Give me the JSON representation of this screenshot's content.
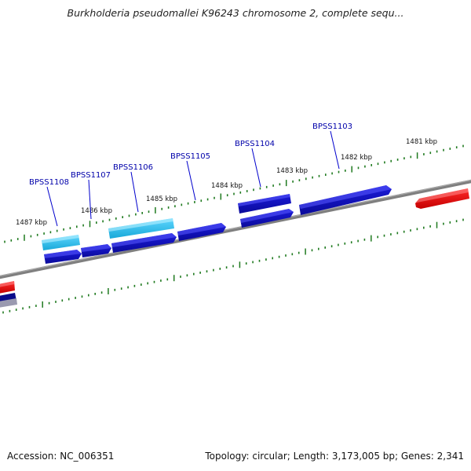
{
  "title": "Burkholderia pseudomallei K96243 chromosome 2, complete sequ...",
  "footer": {
    "accession": "Accession: NC_006351",
    "summary": "Topology: circular; Length: 3,173,005 bp; Genes: 2,341"
  },
  "colors": {
    "backbone": "#7f7f7f",
    "ticks": "#1f7a1f",
    "gene_dark": "#1a1ad8",
    "gene_light": "#1fb8e8",
    "gene_red": "#e81414",
    "label": "#0000aa"
  },
  "kbp_labels": [
    {
      "text": "1481 kbp"
    },
    {
      "text": "1482 kbp"
    },
    {
      "text": "1483 kbp"
    },
    {
      "text": "1484 kbp"
    },
    {
      "text": "1485 kbp"
    },
    {
      "text": "1486 kbp"
    },
    {
      "text": "1487 kbp"
    }
  ],
  "gene_labels": [
    {
      "text": "BPSS1103"
    },
    {
      "text": "BPSS1104"
    },
    {
      "text": "BPSS1105"
    },
    {
      "text": "BPSS1106"
    },
    {
      "text": "BPSS1107"
    },
    {
      "text": "BPSS1108"
    }
  ]
}
